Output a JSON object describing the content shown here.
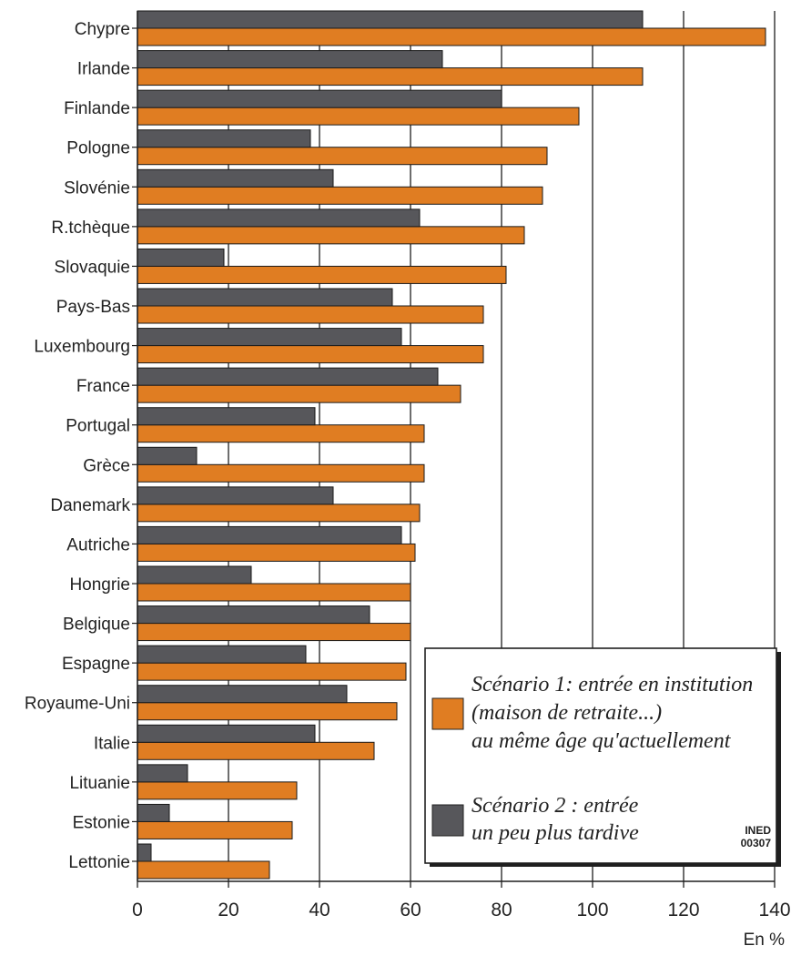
{
  "chart_data": {
    "type": "bar",
    "orientation": "horizontal",
    "categories": [
      "Chypre",
      "Irlande",
      "Finlande",
      "Pologne",
      "Slovénie",
      "R.tchèque",
      "Slovaquie",
      "Pays-Bas",
      "Luxembourg",
      "France",
      "Portugal",
      "Grèce",
      "Danemark",
      "Autriche",
      "Hongrie",
      "Belgique",
      "Espagne",
      "Royaume-Uni",
      "Italie",
      "Lituanie",
      "Estonie",
      "Lettonie"
    ],
    "series": [
      {
        "name": "Scénario 1: entrée en institution (maison de retraite...) au même âge qu'actuellement",
        "legend_lines": [
          "Scénario 1: entrée en institution",
          "(maison de retraite...)",
          "au même âge qu'actuellement"
        ],
        "color": "#e07d22",
        "values": [
          138,
          111,
          97,
          90,
          89,
          85,
          81,
          76,
          76,
          71,
          63,
          63,
          62,
          61,
          60,
          60,
          59,
          57,
          52,
          35,
          34,
          29
        ]
      },
      {
        "name": "Scénario 2 : entrée un peu plus tardive",
        "legend_lines": [
          "Scénario 2 : entrée",
          "un peu plus tardive"
        ],
        "color": "#57575b",
        "values": [
          111,
          67,
          80,
          38,
          43,
          62,
          19,
          56,
          58,
          66,
          39,
          13,
          43,
          58,
          25,
          51,
          37,
          46,
          39,
          11,
          7,
          3
        ]
      }
    ],
    "x_ticks": [
      0,
      20,
      40,
      60,
      80,
      100,
      120,
      140
    ],
    "xlim": [
      0,
      140
    ],
    "xlabel": "En %",
    "title": "",
    "grid": "vertical",
    "legend_position": "bottom-right",
    "stamp": [
      "INED",
      "00307"
    ]
  }
}
